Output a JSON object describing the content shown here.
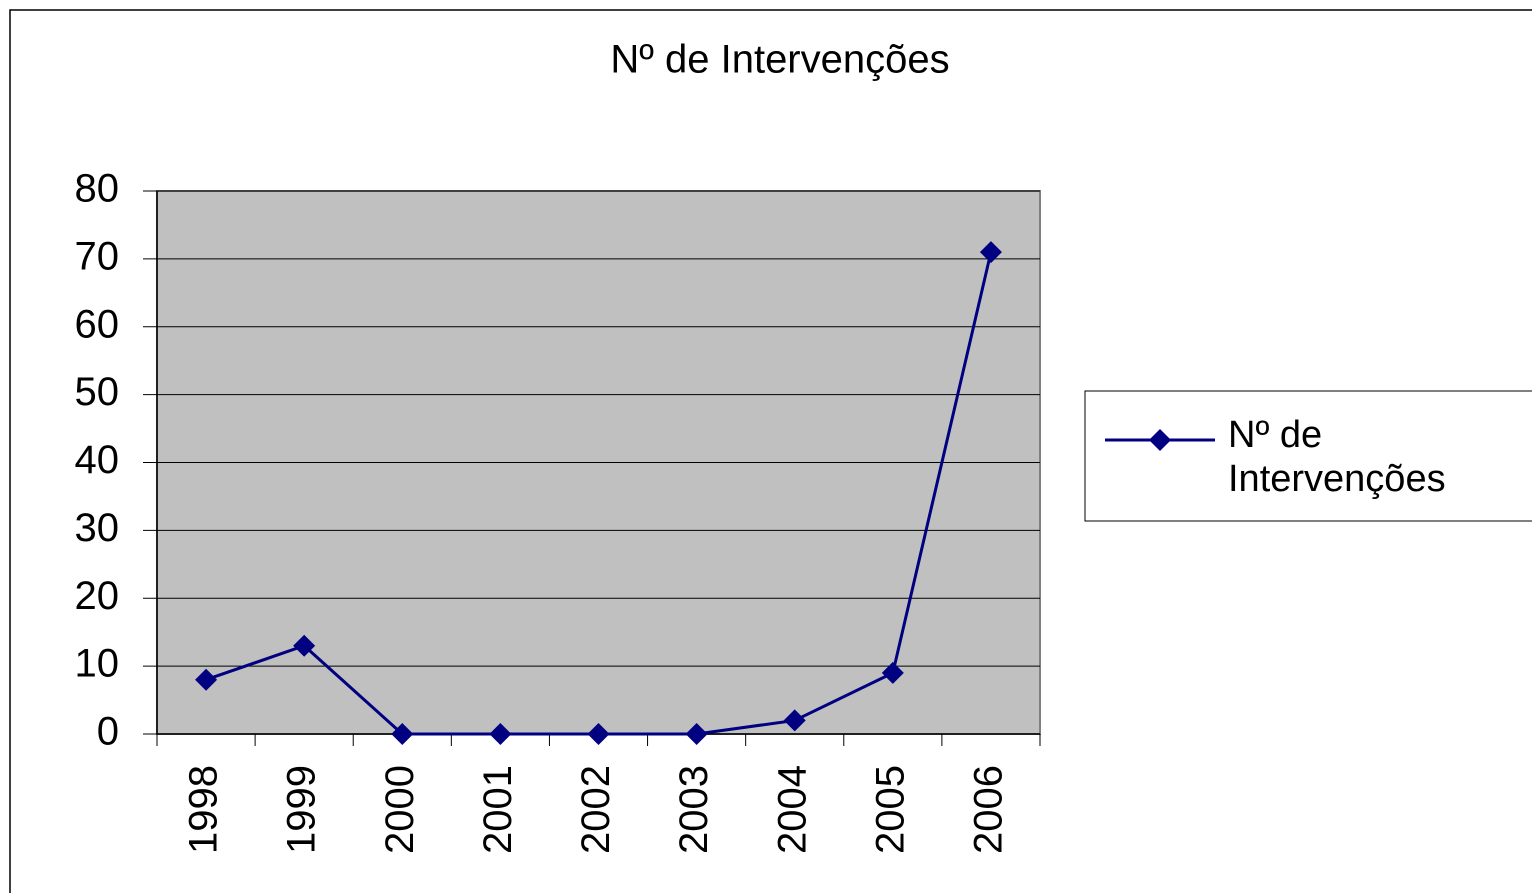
{
  "chart_data": {
    "type": "line",
    "title": "Nº de Intervenções",
    "categories": [
      "1998",
      "1999",
      "2000",
      "2001",
      "2002",
      "2003",
      "2004",
      "2005",
      "2006"
    ],
    "series": [
      {
        "name": "Nº de Intervenções",
        "color": "#000080",
        "values": [
          8,
          13,
          0,
          0,
          0,
          0,
          2,
          9,
          71
        ]
      }
    ],
    "ylim": [
      0,
      80
    ],
    "yticks": [
      0,
      10,
      20,
      30,
      40,
      50,
      60,
      70,
      80
    ],
    "grid": true,
    "legend": "right"
  }
}
